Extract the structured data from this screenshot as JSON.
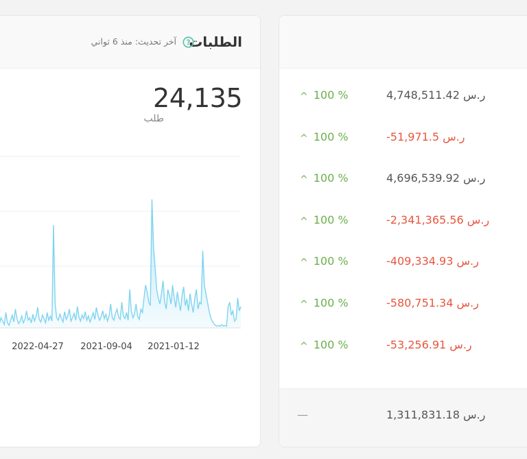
{
  "orders_card": {
    "title": "الطلبات",
    "last_update": "آخر تحديث: منذ 6 ثواني",
    "total_value": "24,135",
    "total_unit": "طلب"
  },
  "chart_data": {
    "type": "area",
    "color": "#7fd3f0",
    "x_tick_labels": [
      "2022-04-27",
      "2021-09-04",
      "2021-01-12"
    ],
    "grid": true,
    "values": [
      2,
      5,
      12,
      8,
      4,
      18,
      6,
      3,
      9,
      15,
      7,
      22,
      11,
      5,
      8,
      14,
      6,
      10,
      20,
      9,
      12,
      6,
      16,
      8,
      13,
      24,
      10,
      7,
      15,
      11,
      6,
      18,
      9,
      14,
      8,
      120,
      28,
      12,
      9,
      16,
      11,
      7,
      19,
      10,
      14,
      22,
      8,
      12,
      17,
      9,
      25,
      13,
      8,
      15,
      11,
      19,
      9,
      14,
      7,
      12,
      18,
      10,
      24,
      15,
      9,
      13,
      20,
      11,
      16,
      8,
      14,
      28,
      12,
      9,
      17,
      22,
      13,
      10,
      30,
      14,
      11,
      18,
      9,
      45,
      20,
      12,
      16,
      28,
      14,
      10,
      22,
      18,
      35,
      50,
      42,
      30,
      26,
      150,
      95,
      70,
      45,
      35,
      28,
      40,
      55,
      30,
      22,
      45,
      38,
      28,
      50,
      35,
      24,
      42,
      30,
      20,
      38,
      48,
      26,
      34,
      20,
      40,
      28,
      18,
      35,
      45,
      22,
      30,
      28,
      90,
      50,
      40,
      30,
      20,
      12,
      8,
      5,
      3,
      2,
      3,
      2,
      4,
      2,
      3,
      2,
      25,
      30,
      15,
      20,
      8,
      10,
      35,
      20,
      25
    ],
    "ylim": [
      0,
      200
    ]
  },
  "summary_card": {
    "rows": [
      {
        "amount": "4,748,511.42 ر.س",
        "change": "100 %",
        "negative": false
      },
      {
        "amount": "-51,971.5 ر.س",
        "change": "100 %",
        "negative": true
      },
      {
        "amount": "4,696,539.92 ر.س",
        "change": "100 %",
        "negative": false
      },
      {
        "amount": "-2,341,365.56 ر.س",
        "change": "100 %",
        "negative": true
      },
      {
        "amount": "-409,334.93 ر.س",
        "change": "100 %",
        "negative": true
      },
      {
        "amount": "-580,751.34 ر.س",
        "change": "100 %",
        "negative": true
      },
      {
        "amount": "-53,256.91 ر.س",
        "change": "100 %",
        "negative": true
      }
    ],
    "footer_dash": "—",
    "footer_amount": "1,311,831.18 ر.س"
  },
  "icons": {
    "help": "question-circle-icon",
    "trend_up": "chevron-up-icon"
  },
  "colors": {
    "positive": "#6ab04c",
    "negative": "#e8553e",
    "help_icon": "#5cc3a8"
  }
}
